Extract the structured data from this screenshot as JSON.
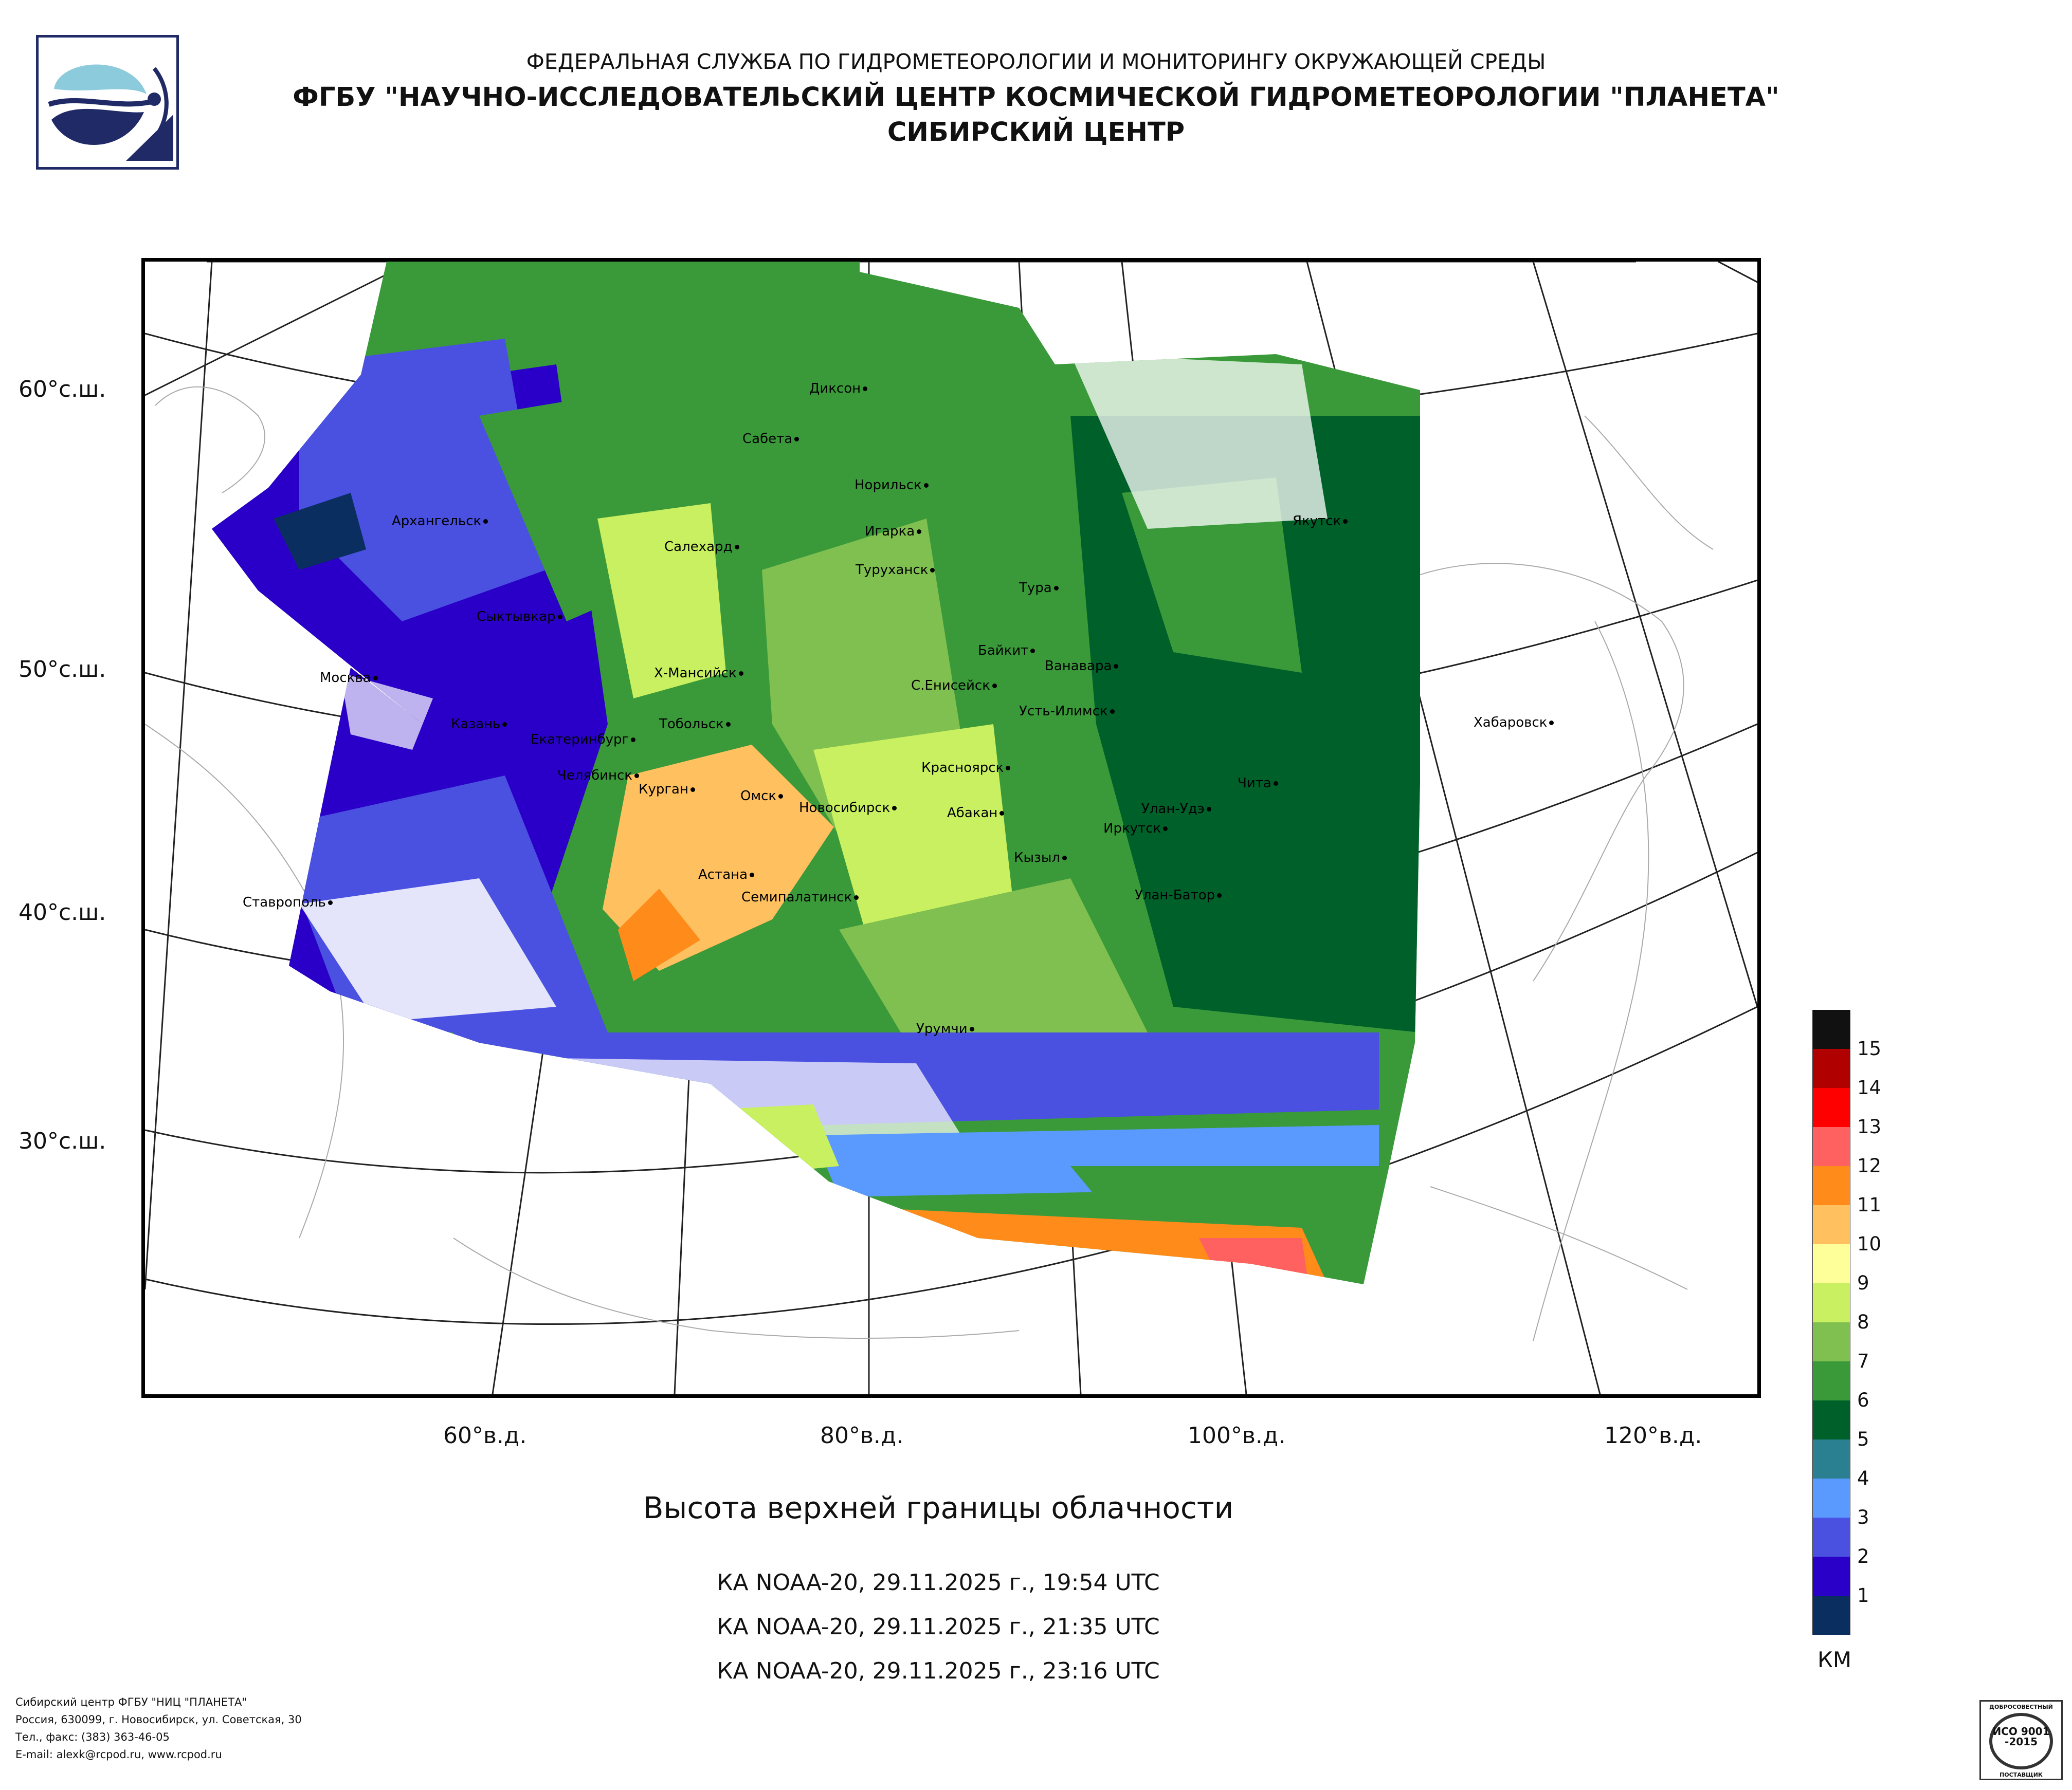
{
  "header": {
    "line1": "ФЕДЕРАЛЬНАЯ СЛУЖБА ПО ГИДРОМЕТЕОРОЛОГИИ И МОНИТОРИНГУ ОКРУЖАЮЩЕЙ СРЕДЫ",
    "line2": "ФГБУ \"НАУЧНО-ИССЛЕДОВАТЕЛЬСКИЙ ЦЕНТР КОСМИЧЕСКОЙ ГИДРОМЕТЕОРОЛОГИИ \"ПЛАНЕТА\"",
    "line3": "СИБИРСКИЙ ЦЕНТР"
  },
  "map": {
    "lat_labels": [
      "60°с.ш.",
      "50°с.ш.",
      "40°с.ш.",
      "30°с.ш."
    ],
    "lon_labels": [
      "60°в.д.",
      "80°в.д.",
      "100°в.д.",
      "120°в.д."
    ],
    "cities": [
      "Диксон",
      "Сабета",
      "Норильск",
      "Игарка",
      "Туруханск",
      "Якутск",
      "Архангельск",
      "Салехард",
      "Тура",
      "Сыктывкар",
      "Байкит",
      "Ванавара",
      "Москва",
      "Х-Мансийск",
      "С.Енисейск",
      "Усть-Илимск",
      "Хабаровск",
      "Казань",
      "Тобольск",
      "Екатеринбург",
      "Челябинск",
      "Курган",
      "Красноярск",
      "Чита",
      "Омск",
      "Новосибирск",
      "Абакан",
      "Улан-Удэ",
      "Иркутск",
      "Кызыл",
      "Астана",
      "Ставрополь",
      "Семипалатинск",
      "Улан-Батор",
      "Урумчи"
    ]
  },
  "product": {
    "title": "Высота верхней границы облачности",
    "passes": [
      "КА NOAA-20, 29.11.2025 г., 19:54 UTC",
      "КА NOAA-20, 29.11.2025 г., 21:35 UTC",
      "КА NOAA-20, 29.11.2025 г., 23:16 UTC"
    ]
  },
  "legend": {
    "unit": "КМ",
    "classes": [
      {
        "label": "",
        "color": "#111111"
      },
      {
        "label": "15",
        "color": "#b00000"
      },
      {
        "label": "14",
        "color": "#ff0000"
      },
      {
        "label": "13",
        "color": "#ff6060"
      },
      {
        "label": "12",
        "color": "#ff8c1a"
      },
      {
        "label": "11",
        "color": "#ffc060"
      },
      {
        "label": "10",
        "color": "#ffff9a"
      },
      {
        "label": "9",
        "color": "#c8f060"
      },
      {
        "label": "8",
        "color": "#80c050"
      },
      {
        "label": "7",
        "color": "#3a9a3a"
      },
      {
        "label": "6",
        "color": "#00602a"
      },
      {
        "label": "5",
        "color": "#2a8090"
      },
      {
        "label": "4",
        "color": "#5a9aff"
      },
      {
        "label": "3",
        "color": "#4a50e0"
      },
      {
        "label": "2",
        "color": "#2a00c8"
      },
      {
        "label": "1",
        "color": "#0a2e60"
      }
    ]
  },
  "footer": {
    "lines": [
      "Сибирский центр ФГБУ \"НИЦ \"ПЛАНЕТА\"",
      "Россия, 630099, г. Новосибирск, ул. Советская, 30",
      "Тел., факс: (383) 363-46-05",
      "E-mail: alexk@rcpod.ru, www.rcpod.ru"
    ]
  },
  "iso_badge": {
    "top": "ДОБРОСОВЕСТНЫЙ",
    "middle": "ИСО 9001 -2015",
    "bottom": "ПОСТАВЩИК"
  }
}
